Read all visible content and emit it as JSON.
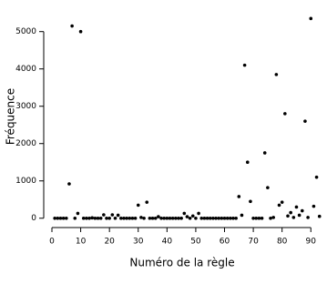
{
  "chart_data": {
    "type": "scatter",
    "x_label": "Numéro de la règle",
    "y_label": "Fréquence",
    "x": [
      1,
      2,
      3,
      4,
      5,
      6,
      7,
      8,
      9,
      10,
      11,
      12,
      13,
      14,
      15,
      16,
      17,
      18,
      19,
      20,
      21,
      22,
      23,
      24,
      25,
      26,
      27,
      28,
      29,
      30,
      31,
      32,
      33,
      34,
      35,
      36,
      37,
      38,
      39,
      40,
      41,
      42,
      43,
      44,
      45,
      46,
      47,
      48,
      49,
      50,
      51,
      52,
      53,
      54,
      55,
      56,
      57,
      58,
      59,
      60,
      61,
      62,
      63,
      64,
      65,
      66,
      67,
      68,
      69,
      70,
      71,
      72,
      73,
      74,
      75,
      76,
      77,
      78,
      79,
      80,
      81,
      82,
      83,
      84,
      85,
      86,
      87,
      88,
      89,
      90,
      91,
      92,
      93
    ],
    "series": [
      {
        "color": "#000000",
        "values": [
          0,
          0,
          0,
          0,
          0,
          920,
          5150,
          0,
          130,
          5000,
          0,
          0,
          0,
          10,
          0,
          0,
          0,
          90,
          0,
          0,
          90,
          0,
          80,
          0,
          0,
          0,
          0,
          0,
          0,
          350,
          20,
          0,
          430,
          0,
          0,
          0,
          40,
          0,
          0,
          0,
          0,
          0,
          0,
          0,
          0,
          130,
          40,
          0,
          60,
          0,
          130,
          0,
          0,
          0,
          0,
          0,
          0,
          0,
          0,
          0,
          0,
          0,
          0,
          0,
          580,
          80,
          4100,
          1500,
          450,
          0,
          0,
          0,
          0,
          1750,
          820,
          0,
          20,
          3850,
          350,
          430,
          2800,
          60,
          150,
          20,
          300,
          80,
          200,
          2600,
          20,
          5350,
          320,
          1100,
          50
        ]
      }
    ],
    "xlim": [
      -2.85,
      93.4
    ],
    "ylim": [
      -250,
      5700
    ],
    "xticks": [
      0,
      10,
      20,
      30,
      40,
      50,
      60,
      70,
      80,
      90
    ],
    "yticks": [
      0,
      1000,
      2000,
      3000,
      4000,
      5000
    ]
  }
}
